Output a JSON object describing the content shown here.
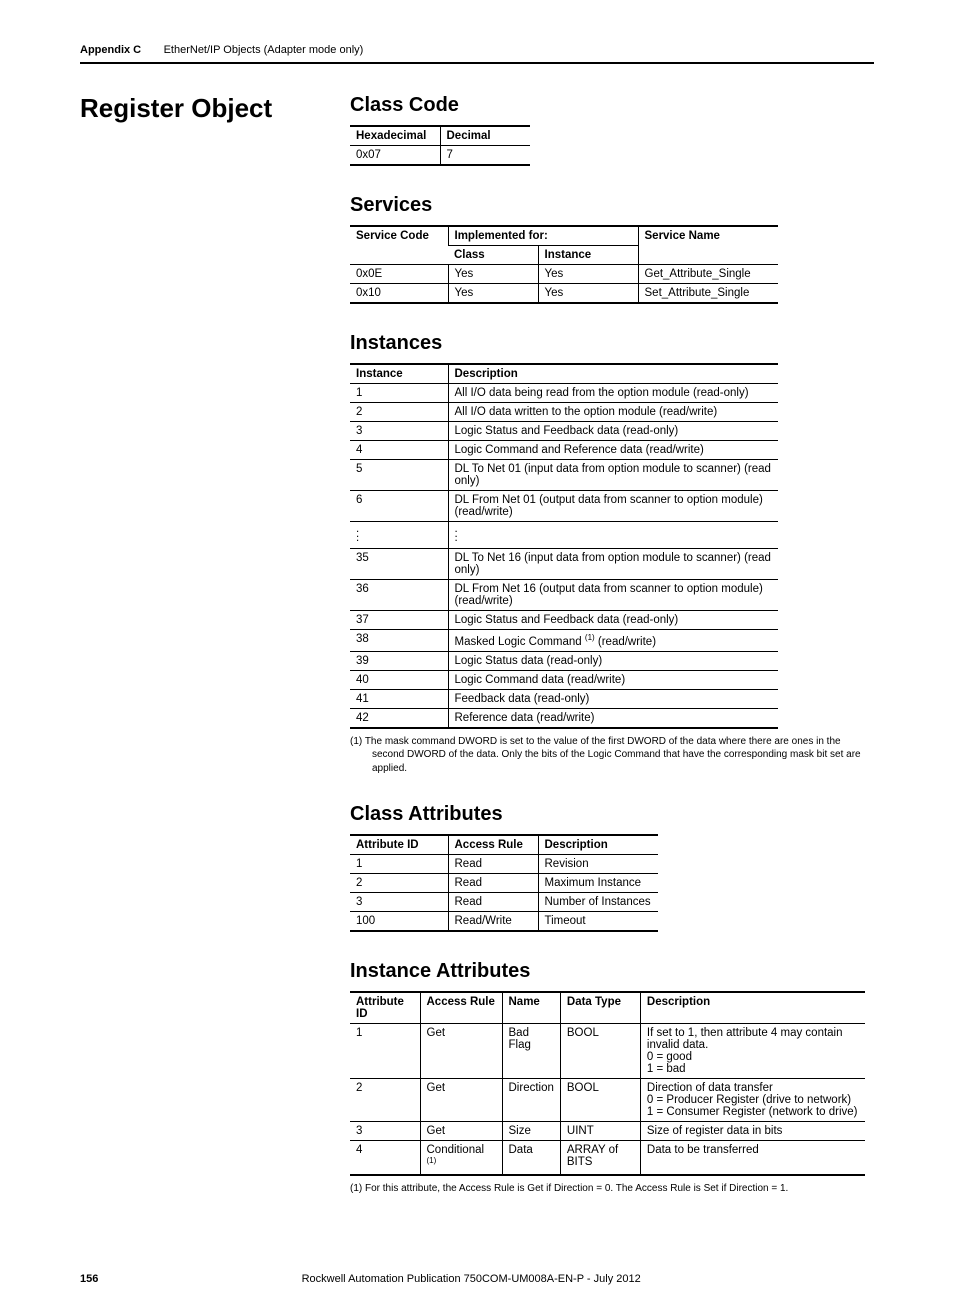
{
  "header": {
    "appendix": "Appendix C",
    "chapter": "EtherNet/IP Objects (Adapter mode only)"
  },
  "section_title": "Register Object",
  "class_code": {
    "title": "Class Code",
    "headers": [
      "Hexadecimal",
      "Decimal"
    ],
    "rows": [
      [
        "0x07",
        "7"
      ]
    ],
    "col_widths": [
      "90px",
      "90px"
    ]
  },
  "services": {
    "title": "Services",
    "header_row1": [
      "Service Code",
      "Implemented for:",
      "Service Name"
    ],
    "header_row2": [
      "Class",
      "Instance"
    ],
    "rows": [
      [
        "0x0E",
        "Yes",
        "Yes",
        "Get_Attribute_Single"
      ],
      [
        "0x10",
        "Yes",
        "Yes",
        "Set_Attribute_Single"
      ]
    ],
    "col_widths": [
      "98px",
      "90px",
      "100px",
      "140px"
    ]
  },
  "instances": {
    "title": "Instances",
    "headers": [
      "Instance",
      "Description"
    ],
    "rows": [
      [
        "1",
        "All I/O data being read from the option module (read-only)"
      ],
      [
        "2",
        "All I/O data written to the option module (read/write)"
      ],
      [
        "3",
        "Logic Status and Feedback data (read-only)"
      ],
      [
        "4",
        "Logic Command and Reference data (read/write)"
      ],
      [
        "5",
        "DL To Net 01 (input data from option module to scanner) (read only)"
      ],
      [
        "6",
        "DL From Net 01 (output data from scanner to option module) (read/write)"
      ]
    ],
    "rows2": [
      [
        "35",
        "DL To Net 16 (input data from option module to scanner) (read only)"
      ],
      [
        "36",
        "DL From Net 16 (output data from scanner to option module) (read/write)"
      ],
      [
        "37",
        "Logic Status and Feedback data (read-only)"
      ],
      [
        "38",
        "Masked Logic Command (1) (read/write)"
      ],
      [
        "39",
        "Logic Status data (read-only)"
      ],
      [
        "40",
        "Logic Command data (read/write)"
      ],
      [
        "41",
        "Feedback data (read-only)"
      ],
      [
        "42",
        "Reference data (read/write)"
      ]
    ],
    "col_widths": [
      "98px",
      "330px"
    ],
    "footnote": "(1)   The mask command DWORD is set to the value of the first DWORD of the data where there are ones in the second DWORD of the data. Only the bits of the Logic Command that have the corresponding mask bit set are applied."
  },
  "class_attributes": {
    "title": "Class Attributes",
    "headers": [
      "Attribute ID",
      "Access Rule",
      "Description"
    ],
    "rows": [
      [
        "1",
        "Read",
        "Revision"
      ],
      [
        "2",
        "Read",
        "Maximum Instance"
      ],
      [
        "3",
        "Read",
        "Number of Instances"
      ],
      [
        "100",
        "Read/Write",
        "Timeout"
      ]
    ],
    "col_widths": [
      "98px",
      "90px",
      "120px"
    ]
  },
  "instance_attributes": {
    "title": "Instance Attributes",
    "headers": [
      "Attribute ID",
      "Access Rule",
      "Name",
      "Data Type",
      "Description"
    ],
    "rows": [
      [
        "1",
        "Get",
        "Bad Flag",
        "BOOL",
        "If set to 1, then attribute 4 may contain invalid data.\n0 = good\n1 = bad"
      ],
      [
        "2",
        "Get",
        "Direction",
        "BOOL",
        "Direction of data transfer\n0 = Producer Register (drive to network)\n1 = Consumer Register (network to drive)"
      ],
      [
        "3",
        "Get",
        "Size",
        "UINT",
        "Size of register data in bits"
      ],
      [
        "4",
        "Conditional (1)",
        "Data",
        "ARRAY of BITS",
        "Data to be transferred"
      ]
    ],
    "col_widths": [
      "70px",
      "82px",
      "56px",
      "80px",
      "225px"
    ],
    "footnote": "(1)   For this attribute, the Access Rule is Get if Direction = 0. The Access Rule is Set if Direction = 1."
  },
  "footer": {
    "page": "156",
    "pub": "Rockwell Automation Publication 750COM-UM008A-EN-P - July 2012"
  }
}
